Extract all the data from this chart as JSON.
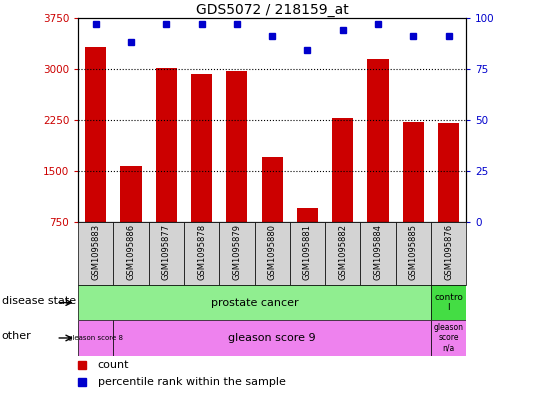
{
  "title": "GDS5072 / 218159_at",
  "samples": [
    "GSM1095883",
    "GSM1095886",
    "GSM1095877",
    "GSM1095878",
    "GSM1095879",
    "GSM1095880",
    "GSM1095881",
    "GSM1095882",
    "GSM1095884",
    "GSM1095885",
    "GSM1095876"
  ],
  "counts": [
    3320,
    1580,
    3010,
    2920,
    2960,
    1700,
    950,
    2280,
    3150,
    2220,
    2210
  ],
  "percentile_ranks": [
    97,
    88,
    97,
    97,
    97,
    91,
    84,
    94,
    97,
    91,
    91
  ],
  "ylim_left": [
    750,
    3750
  ],
  "ylim_right": [
    0,
    100
  ],
  "yticks_left": [
    750,
    1500,
    2250,
    3000,
    3750
  ],
  "yticks_right": [
    0,
    25,
    50,
    75,
    100
  ],
  "bar_color": "#cc0000",
  "dot_color": "#0000cc",
  "grid_color": "#000000",
  "disease_state_color_green": "#90ee90",
  "disease_state_color_green2": "#44dd44",
  "other_color": "#ee82ee",
  "tick_bg_color": "#d3d3d3",
  "legend_count_color": "#cc0000",
  "legend_pct_color": "#0000cc",
  "fig_width": 5.39,
  "fig_height": 3.93,
  "dpi": 100
}
